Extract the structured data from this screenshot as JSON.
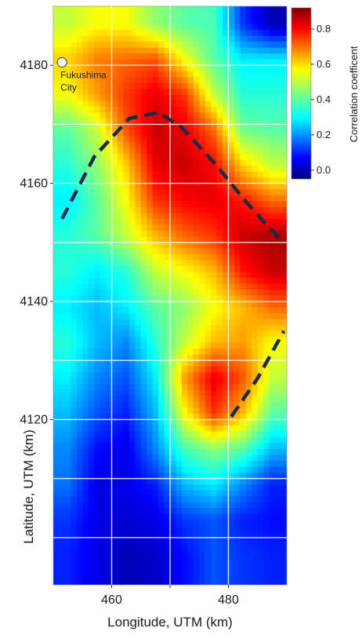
{
  "chart_data": {
    "type": "heatmap",
    "xlabel": "Longitude, UTM (km)",
    "ylabel": "Latitude, UTM (km)",
    "xlim": [
      450,
      490
    ],
    "ylim": [
      4092,
      4190
    ],
    "x_ticks": [
      460,
      470,
      480
    ],
    "x_tick_labels": [
      "460",
      "",
      "480"
    ],
    "y_ticks": [
      4120,
      4140,
      4160,
      4180
    ],
    "y_tick_labels": [
      "4120",
      "4140",
      "4160",
      "4180"
    ],
    "grid": true,
    "grid_x": [
      460,
      470,
      480
    ],
    "grid_y": [
      4100,
      4110,
      4120,
      4130,
      4140,
      4150,
      4160,
      4170,
      4180
    ],
    "colorbar": {
      "label": "Correlation coefficent",
      "range": [
        -0.05,
        0.92
      ],
      "ticks": [
        0.0,
        0.2,
        0.4,
        0.6,
        0.8
      ],
      "tick_labels": [
        "0.0",
        "0.2",
        "0.4",
        "0.6",
        "0.8"
      ],
      "colormap": "jet"
    },
    "grid_x_centers": [
      452.5,
      457.5,
      462.5,
      467.5,
      472.5,
      477.5,
      482.5,
      487.5
    ],
    "grid_y_centers": [
      4187,
      4181,
      4175,
      4169,
      4163,
      4157,
      4151,
      4145,
      4139,
      4133,
      4127,
      4121,
      4115,
      4109,
      4103,
      4097
    ],
    "values": [
      [
        0.5,
        0.55,
        0.55,
        0.45,
        0.4,
        0.38,
        0.12,
        0.0
      ],
      [
        0.6,
        0.68,
        0.7,
        0.72,
        0.55,
        0.4,
        0.3,
        0.3
      ],
      [
        0.55,
        0.65,
        0.75,
        0.82,
        0.75,
        0.5,
        0.35,
        0.35
      ],
      [
        0.4,
        0.5,
        0.72,
        0.85,
        0.82,
        0.7,
        0.42,
        0.4
      ],
      [
        0.35,
        0.45,
        0.6,
        0.82,
        0.85,
        0.8,
        0.6,
        0.5
      ],
      [
        0.3,
        0.4,
        0.55,
        0.75,
        0.8,
        0.82,
        0.78,
        0.7
      ],
      [
        0.35,
        0.4,
        0.5,
        0.62,
        0.7,
        0.75,
        0.85,
        0.88
      ],
      [
        0.35,
        0.3,
        0.35,
        0.5,
        0.55,
        0.62,
        0.78,
        0.85
      ],
      [
        0.3,
        0.25,
        0.3,
        0.4,
        0.45,
        0.55,
        0.62,
        0.7
      ],
      [
        0.35,
        0.25,
        0.2,
        0.35,
        0.5,
        0.62,
        0.65,
        0.55
      ],
      [
        0.3,
        0.2,
        0.15,
        0.3,
        0.65,
        0.82,
        0.72,
        0.5
      ],
      [
        0.25,
        0.15,
        0.1,
        0.25,
        0.55,
        0.75,
        0.62,
        0.4
      ],
      [
        0.2,
        0.08,
        0.05,
        0.2,
        0.38,
        0.45,
        0.4,
        0.25
      ],
      [
        0.18,
        0.05,
        0.05,
        0.1,
        0.25,
        0.3,
        0.2,
        0.1
      ],
      [
        0.12,
        0.05,
        0.03,
        0.05,
        0.12,
        0.15,
        0.1,
        0.08
      ],
      [
        0.1,
        0.05,
        0.0,
        0.02,
        0.08,
        0.15,
        0.12,
        0.1
      ]
    ],
    "annotations": [
      {
        "type": "point",
        "label": "Fukushima\nCity",
        "x": 451.5,
        "y": 4180.5,
        "marker_color": "#ffffff"
      }
    ],
    "dashed_lines": [
      {
        "name": "",
        "color": "#1a2a4a",
        "points": [
          [
            451.5,
            4154
          ],
          [
            457,
            4164.5
          ],
          [
            463,
            4171
          ],
          [
            468,
            4172
          ],
          [
            472,
            4169.5
          ],
          [
            478,
            4163
          ],
          [
            482.5,
            4157.5
          ],
          [
            486.5,
            4153
          ],
          [
            489.5,
            4150
          ]
        ]
      },
      {
        "name": "",
        "color": "#1a2a4a",
        "points": [
          [
            480.5,
            4120.5
          ],
          [
            485,
            4127
          ],
          [
            489.5,
            4135
          ]
        ]
      }
    ]
  }
}
